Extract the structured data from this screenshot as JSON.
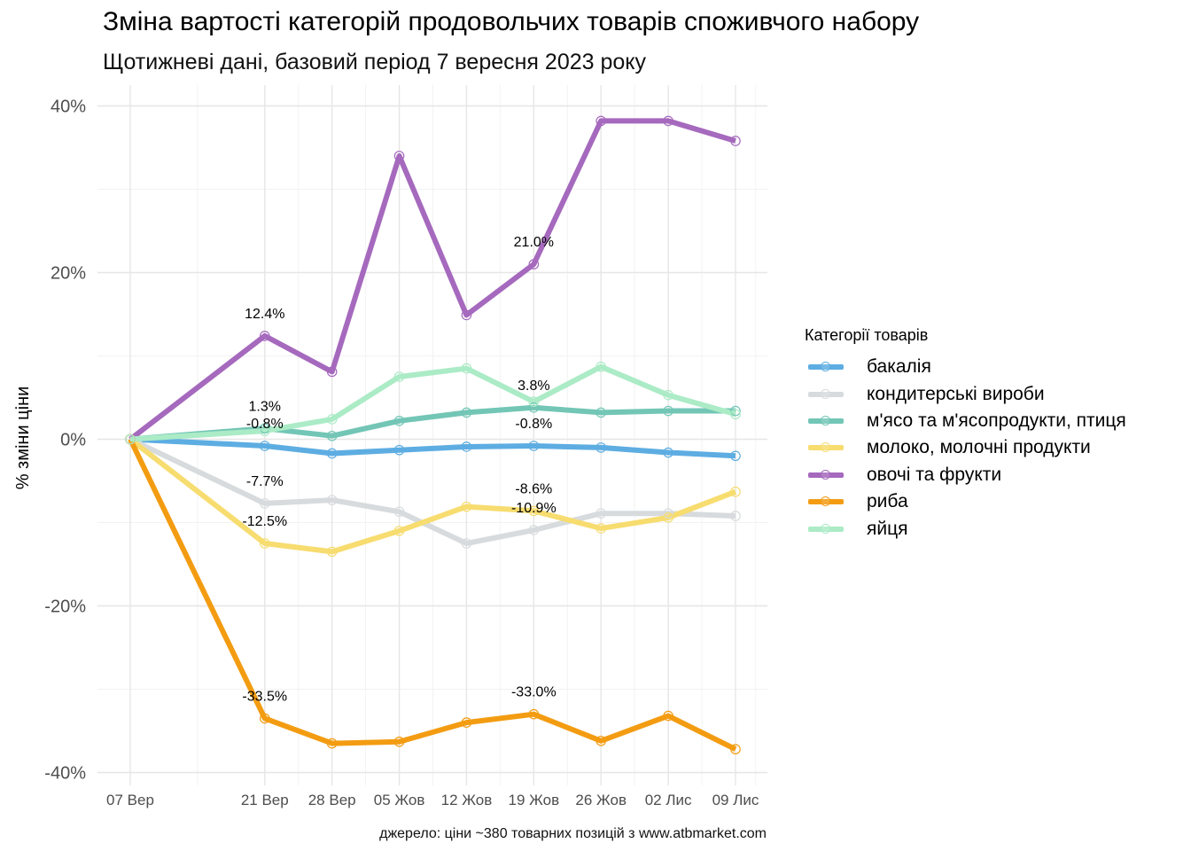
{
  "title": "Зміна вартості категорій продовольчих товарів споживчого набору",
  "subtitle": "Щотижневі дані, базовий період 7 вересня 2023 року",
  "caption": "джерело: ціни ~380 товарних позицій з www.atbmarket.com",
  "chart_data": {
    "type": "line",
    "x": [
      "2023-09-07",
      "2023-09-21",
      "2023-09-28",
      "2023-10-05",
      "2023-10-12",
      "2023-10-19",
      "2023-10-26",
      "2023-11-02",
      "2023-11-09"
    ],
    "x_tick_labels": [
      "07 Вер",
      "21 Вер",
      "28 Вер",
      "05 Жов",
      "12 Жов",
      "19 Жов",
      "26 Жов",
      "02 Лис",
      "09 Лис"
    ],
    "ylabel": "% зміни ціни",
    "xlabel": "",
    "ylim": [
      -40,
      40
    ],
    "y_ticks": [
      -40,
      -20,
      0,
      20,
      40
    ],
    "y_tick_labels": [
      "-40%",
      "-20%",
      "0%",
      "20%",
      "40%"
    ],
    "grid": true,
    "legend_position": "right",
    "legend_title": "Категорії товарів",
    "series": [
      {
        "name": "бакалія",
        "color": "#5DADE2",
        "values": [
          0,
          -0.8,
          -1.7,
          -1.3,
          -0.9,
          -0.8,
          -1.0,
          -1.6,
          -2.0
        ]
      },
      {
        "name": "кондитерські вироби",
        "color": "#D7DBDD",
        "values": [
          0,
          -7.7,
          -7.3,
          -8.7,
          -12.5,
          -10.9,
          -8.9,
          -8.9,
          -9.2
        ]
      },
      {
        "name": "м'ясо та м'ясопродукти, птиця",
        "color": "#73C6B6",
        "values": [
          0,
          1.3,
          0.4,
          2.2,
          3.2,
          3.8,
          3.2,
          3.4,
          3.4
        ]
      },
      {
        "name": "молоко, молочні продукти",
        "color": "#F7DC6F",
        "values": [
          0,
          -12.5,
          -13.5,
          -11.0,
          -8.1,
          -8.6,
          -10.7,
          -9.4,
          -6.3
        ]
      },
      {
        "name": "овочі та фрукти",
        "color": "#A569BD",
        "values": [
          0,
          12.4,
          8.1,
          34.0,
          14.9,
          21.0,
          38.2,
          38.2,
          35.8
        ]
      },
      {
        "name": "риба",
        "color": "#F39C12",
        "values": [
          0,
          -33.5,
          -36.5,
          -36.3,
          -34.0,
          -33.0,
          -36.2,
          -33.2,
          -37.2
        ]
      },
      {
        "name": "яйця",
        "color": "#ABEBC6",
        "values": [
          0,
          1.0,
          2.4,
          7.5,
          8.5,
          4.5,
          8.7,
          5.3,
          3.0
        ]
      }
    ],
    "annotations": [
      {
        "x": "2023-09-21",
        "y": 12.4,
        "text": "12.4%"
      },
      {
        "x": "2023-09-21",
        "y": 1.3,
        "text": "1.3%"
      },
      {
        "x": "2023-09-21",
        "y": -0.8,
        "text": "-0.8%"
      },
      {
        "x": "2023-09-21",
        "y": -7.7,
        "text": "-7.7%"
      },
      {
        "x": "2023-09-21",
        "y": -12.5,
        "text": "-12.5%"
      },
      {
        "x": "2023-09-21",
        "y": -33.5,
        "text": "-33.5%"
      },
      {
        "x": "2023-10-19",
        "y": 21.0,
        "text": "21.0%"
      },
      {
        "x": "2023-10-19",
        "y": 3.8,
        "text": "3.8%"
      },
      {
        "x": "2023-10-19",
        "y": -0.8,
        "text": "-0.8%"
      },
      {
        "x": "2023-10-19",
        "y": -8.6,
        "text": "-8.6%"
      },
      {
        "x": "2023-10-19",
        "y": -10.9,
        "text": "-10.9%"
      },
      {
        "x": "2023-10-19",
        "y": -33.0,
        "text": "-33.0%"
      }
    ]
  }
}
